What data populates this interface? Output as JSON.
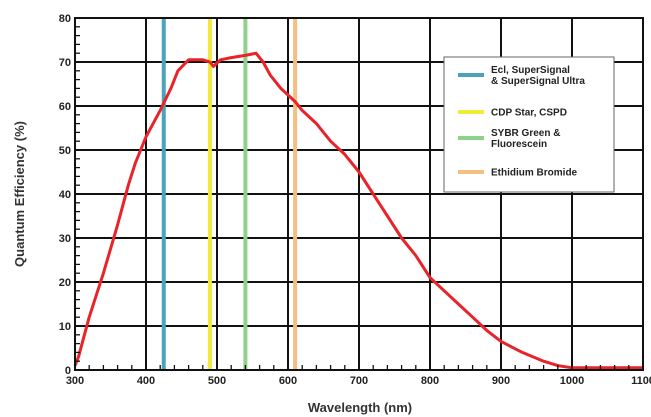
{
  "chart_data": {
    "type": "line",
    "title": "",
    "xlabel": "Wavelength (nm)",
    "ylabel": "Quantum Efficiency (%)",
    "xlim": [
      300,
      1100
    ],
    "ylim": [
      0,
      80
    ],
    "x_ticks": [
      "300",
      "400",
      "500",
      "600",
      "700",
      "800",
      "900",
      "1000",
      "1100"
    ],
    "y_ticks": [
      "0",
      "10",
      "20",
      "30",
      "40",
      "50",
      "60",
      "70",
      "80"
    ],
    "grid": true,
    "legend_position": "right",
    "series": [
      {
        "color": "#e8232a",
        "points": [
          [
            300,
            1
          ],
          [
            305,
            3
          ],
          [
            320,
            12
          ],
          [
            340,
            22
          ],
          [
            360,
            33
          ],
          [
            375,
            42
          ],
          [
            385,
            47
          ],
          [
            400,
            53
          ],
          [
            420,
            59
          ],
          [
            435,
            64
          ],
          [
            445,
            68
          ],
          [
            460,
            70.5
          ],
          [
            480,
            70.5
          ],
          [
            490,
            70
          ],
          [
            495,
            69
          ],
          [
            505,
            70.5
          ],
          [
            520,
            71
          ],
          [
            540,
            71.5
          ],
          [
            555,
            72
          ],
          [
            565,
            70
          ],
          [
            575,
            67
          ],
          [
            590,
            64
          ],
          [
            610,
            61
          ],
          [
            620,
            59
          ],
          [
            640,
            56
          ],
          [
            660,
            52
          ],
          [
            680,
            49
          ],
          [
            700,
            45
          ],
          [
            720,
            40
          ],
          [
            740,
            35
          ],
          [
            760,
            30
          ],
          [
            780,
            26
          ],
          [
            800,
            21
          ],
          [
            820,
            18
          ],
          [
            840,
            15
          ],
          [
            860,
            12
          ],
          [
            880,
            9
          ],
          [
            900,
            6.5
          ],
          [
            930,
            4
          ],
          [
            960,
            2
          ],
          [
            980,
            1
          ],
          [
            1000,
            0.5
          ],
          [
            1040,
            0.5
          ],
          [
            1100,
            0.5
          ]
        ]
      }
    ],
    "bands": [
      {
        "wavelength": 425,
        "color": "#4aa3b8",
        "label_lines": [
          "Ecl, SuperSignal",
          "& SuperSignal Ultra"
        ]
      },
      {
        "wavelength": 490,
        "color": "#f2e93a",
        "label_lines": [
          "CDP Star, CSPD"
        ]
      },
      {
        "wavelength": 540,
        "color": "#8fd18a",
        "label_lines": [
          "SYBR Green &",
          "Fluorescein"
        ]
      },
      {
        "wavelength": 610,
        "color": "#f5bf82",
        "label_lines": [
          "Ethidium Bromide"
        ]
      }
    ]
  }
}
